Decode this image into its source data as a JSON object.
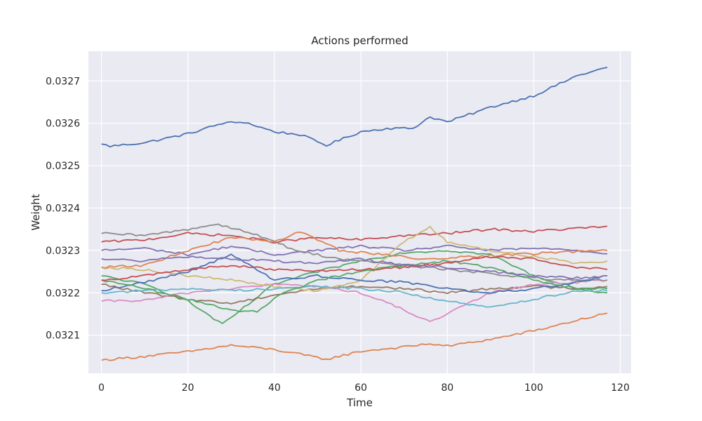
{
  "chart_data": {
    "type": "line",
    "title": "Actions performed",
    "xlabel": "Time",
    "ylabel": "Weight",
    "xlim": [
      -3,
      122.5
    ],
    "ylim": [
      0.03201,
      0.03277
    ],
    "xticks": [
      0,
      20,
      40,
      60,
      80,
      100,
      120
    ],
    "xtick_labels": [
      "0",
      "20",
      "40",
      "60",
      "80",
      "100",
      "120"
    ],
    "yticks": [
      0.0321,
      0.0322,
      0.0323,
      0.0324,
      0.0325,
      0.0326,
      0.0327
    ],
    "ytick_labels": [
      "0.0321",
      "0.0322",
      "0.0323",
      "0.0324",
      "0.0325",
      "0.0326",
      "0.0327"
    ],
    "grid": true,
    "legend": "none",
    "background": "#eaeaf2",
    "series_note": "x values are 0..117 for every series",
    "series": [
      {
        "color": "#4c72b0",
        "values": [
          {
            "x": 0,
            "y": 0.032551
          },
          {
            "x": 2,
            "y": 0.032546
          },
          {
            "x": 10,
            "y": 0.032554
          },
          {
            "x": 20,
            "y": 0.032575
          },
          {
            "x": 28,
            "y": 0.0326
          },
          {
            "x": 33,
            "y": 0.032603
          },
          {
            "x": 40,
            "y": 0.03258
          },
          {
            "x": 46,
            "y": 0.032573
          },
          {
            "x": 52,
            "y": 0.032548
          },
          {
            "x": 60,
            "y": 0.03258
          },
          {
            "x": 66,
            "y": 0.032588
          },
          {
            "x": 72,
            "y": 0.032588
          },
          {
            "x": 76,
            "y": 0.032615
          },
          {
            "x": 80,
            "y": 0.032603
          },
          {
            "x": 90,
            "y": 0.032638
          },
          {
            "x": 100,
            "y": 0.032665
          },
          {
            "x": 110,
            "y": 0.032712
          },
          {
            "x": 117,
            "y": 0.032732
          }
        ]
      },
      {
        "color": "#dd8452",
        "values": [
          {
            "x": 0,
            "y": 0.032041
          },
          {
            "x": 10,
            "y": 0.03205
          },
          {
            "x": 20,
            "y": 0.032061
          },
          {
            "x": 30,
            "y": 0.032076
          },
          {
            "x": 40,
            "y": 0.032066
          },
          {
            "x": 52,
            "y": 0.032043
          },
          {
            "x": 60,
            "y": 0.032062
          },
          {
            "x": 70,
            "y": 0.032072
          },
          {
            "x": 76,
            "y": 0.03208
          },
          {
            "x": 80,
            "y": 0.032074
          },
          {
            "x": 90,
            "y": 0.03209
          },
          {
            "x": 100,
            "y": 0.03211
          },
          {
            "x": 110,
            "y": 0.032135
          },
          {
            "x": 117,
            "y": 0.032152
          }
        ]
      },
      {
        "color": "#55a868",
        "values": [
          {
            "x": 0,
            "y": 0.03224
          },
          {
            "x": 10,
            "y": 0.03222
          },
          {
            "x": 20,
            "y": 0.03218
          },
          {
            "x": 28,
            "y": 0.032125
          },
          {
            "x": 33,
            "y": 0.032165
          },
          {
            "x": 40,
            "y": 0.03222
          },
          {
            "x": 50,
            "y": 0.03225
          },
          {
            "x": 60,
            "y": 0.032275
          },
          {
            "x": 70,
            "y": 0.032295
          },
          {
            "x": 80,
            "y": 0.0323
          },
          {
            "x": 90,
            "y": 0.03229
          },
          {
            "x": 100,
            "y": 0.03224
          },
          {
            "x": 110,
            "y": 0.03221
          },
          {
            "x": 117,
            "y": 0.0322
          }
        ]
      },
      {
        "color": "#c44e52",
        "values": [
          {
            "x": 0,
            "y": 0.03232
          },
          {
            "x": 10,
            "y": 0.032325
          },
          {
            "x": 20,
            "y": 0.03234
          },
          {
            "x": 30,
            "y": 0.032335
          },
          {
            "x": 40,
            "y": 0.03232
          },
          {
            "x": 50,
            "y": 0.03233
          },
          {
            "x": 60,
            "y": 0.032325
          },
          {
            "x": 70,
            "y": 0.032335
          },
          {
            "x": 80,
            "y": 0.03234
          },
          {
            "x": 90,
            "y": 0.03235
          },
          {
            "x": 100,
            "y": 0.032345
          },
          {
            "x": 110,
            "y": 0.032352
          },
          {
            "x": 117,
            "y": 0.032357
          }
        ]
      },
      {
        "color": "#8172b3",
        "values": [
          {
            "x": 0,
            "y": 0.0323
          },
          {
            "x": 10,
            "y": 0.032305
          },
          {
            "x": 20,
            "y": 0.03229
          },
          {
            "x": 30,
            "y": 0.03231
          },
          {
            "x": 40,
            "y": 0.03229
          },
          {
            "x": 50,
            "y": 0.0323
          },
          {
            "x": 60,
            "y": 0.03231
          },
          {
            "x": 70,
            "y": 0.0323
          },
          {
            "x": 80,
            "y": 0.03231
          },
          {
            "x": 90,
            "y": 0.0323
          },
          {
            "x": 100,
            "y": 0.032305
          },
          {
            "x": 110,
            "y": 0.0323
          },
          {
            "x": 117,
            "y": 0.032292
          }
        ]
      },
      {
        "color": "#937860",
        "values": [
          {
            "x": 0,
            "y": 0.03222
          },
          {
            "x": 10,
            "y": 0.0322
          },
          {
            "x": 20,
            "y": 0.032185
          },
          {
            "x": 30,
            "y": 0.032175
          },
          {
            "x": 40,
            "y": 0.032195
          },
          {
            "x": 50,
            "y": 0.03221
          },
          {
            "x": 60,
            "y": 0.032215
          },
          {
            "x": 70,
            "y": 0.03221
          },
          {
            "x": 80,
            "y": 0.0322
          },
          {
            "x": 90,
            "y": 0.03221
          },
          {
            "x": 100,
            "y": 0.032215
          },
          {
            "x": 110,
            "y": 0.03221
          },
          {
            "x": 117,
            "y": 0.032215
          }
        ]
      },
      {
        "color": "#da8bc3",
        "values": [
          {
            "x": 0,
            "y": 0.03218
          },
          {
            "x": 10,
            "y": 0.032182
          },
          {
            "x": 20,
            "y": 0.0322
          },
          {
            "x": 30,
            "y": 0.03221
          },
          {
            "x": 40,
            "y": 0.03222
          },
          {
            "x": 50,
            "y": 0.032215
          },
          {
            "x": 60,
            "y": 0.0322
          },
          {
            "x": 70,
            "y": 0.03216
          },
          {
            "x": 76,
            "y": 0.03213
          },
          {
            "x": 80,
            "y": 0.03215
          },
          {
            "x": 90,
            "y": 0.0322
          },
          {
            "x": 100,
            "y": 0.03222
          },
          {
            "x": 110,
            "y": 0.032225
          },
          {
            "x": 117,
            "y": 0.03223
          }
        ]
      },
      {
        "color": "#8c8c8c",
        "values": [
          {
            "x": 0,
            "y": 0.03234
          },
          {
            "x": 10,
            "y": 0.032335
          },
          {
            "x": 20,
            "y": 0.03235
          },
          {
            "x": 27,
            "y": 0.032362
          },
          {
            "x": 35,
            "y": 0.03234
          },
          {
            "x": 45,
            "y": 0.0323
          },
          {
            "x": 55,
            "y": 0.03228
          },
          {
            "x": 65,
            "y": 0.03227
          },
          {
            "x": 75,
            "y": 0.03226
          },
          {
            "x": 85,
            "y": 0.03225
          },
          {
            "x": 95,
            "y": 0.03224
          },
          {
            "x": 105,
            "y": 0.03223
          },
          {
            "x": 117,
            "y": 0.03223
          }
        ]
      },
      {
        "color": "#ccb974",
        "values": [
          {
            "x": 0,
            "y": 0.03226
          },
          {
            "x": 10,
            "y": 0.032255
          },
          {
            "x": 20,
            "y": 0.03224
          },
          {
            "x": 30,
            "y": 0.03223
          },
          {
            "x": 40,
            "y": 0.032215
          },
          {
            "x": 50,
            "y": 0.032205
          },
          {
            "x": 60,
            "y": 0.03223
          },
          {
            "x": 70,
            "y": 0.03232
          },
          {
            "x": 76,
            "y": 0.032355
          },
          {
            "x": 80,
            "y": 0.03232
          },
          {
            "x": 90,
            "y": 0.0323
          },
          {
            "x": 100,
            "y": 0.032285
          },
          {
            "x": 110,
            "y": 0.03227
          },
          {
            "x": 117,
            "y": 0.032275
          }
        ]
      },
      {
        "color": "#64b5cd",
        "values": [
          {
            "x": 0,
            "y": 0.0322
          },
          {
            "x": 10,
            "y": 0.032205
          },
          {
            "x": 20,
            "y": 0.03221
          },
          {
            "x": 30,
            "y": 0.032205
          },
          {
            "x": 40,
            "y": 0.03221
          },
          {
            "x": 50,
            "y": 0.032215
          },
          {
            "x": 60,
            "y": 0.03221
          },
          {
            "x": 70,
            "y": 0.0322
          },
          {
            "x": 80,
            "y": 0.03218
          },
          {
            "x": 90,
            "y": 0.032165
          },
          {
            "x": 100,
            "y": 0.032185
          },
          {
            "x": 110,
            "y": 0.032205
          },
          {
            "x": 117,
            "y": 0.032205
          }
        ]
      },
      {
        "color": "#4c72b0",
        "values": [
          {
            "x": 0,
            "y": 0.032205
          },
          {
            "x": 10,
            "y": 0.032225
          },
          {
            "x": 20,
            "y": 0.03225
          },
          {
            "x": 30,
            "y": 0.03229
          },
          {
            "x": 40,
            "y": 0.03223
          },
          {
            "x": 50,
            "y": 0.03224
          },
          {
            "x": 60,
            "y": 0.03223
          },
          {
            "x": 70,
            "y": 0.032225
          },
          {
            "x": 80,
            "y": 0.03221
          },
          {
            "x": 90,
            "y": 0.0322
          },
          {
            "x": 100,
            "y": 0.03221
          },
          {
            "x": 110,
            "y": 0.032225
          },
          {
            "x": 117,
            "y": 0.03224
          }
        ]
      },
      {
        "color": "#dd8452",
        "values": [
          {
            "x": 0,
            "y": 0.03226
          },
          {
            "x": 10,
            "y": 0.032265
          },
          {
            "x": 20,
            "y": 0.0323
          },
          {
            "x": 30,
            "y": 0.03233
          },
          {
            "x": 40,
            "y": 0.03232
          },
          {
            "x": 46,
            "y": 0.032345
          },
          {
            "x": 55,
            "y": 0.0323
          },
          {
            "x": 65,
            "y": 0.03229
          },
          {
            "x": 75,
            "y": 0.03228
          },
          {
            "x": 85,
            "y": 0.032285
          },
          {
            "x": 95,
            "y": 0.03229
          },
          {
            "x": 105,
            "y": 0.032295
          },
          {
            "x": 117,
            "y": 0.0323
          }
        ]
      },
      {
        "color": "#55a868",
        "values": [
          {
            "x": 0,
            "y": 0.03223
          },
          {
            "x": 10,
            "y": 0.03221
          },
          {
            "x": 20,
            "y": 0.032185
          },
          {
            "x": 30,
            "y": 0.03216
          },
          {
            "x": 36,
            "y": 0.032155
          },
          {
            "x": 42,
            "y": 0.0322
          },
          {
            "x": 50,
            "y": 0.03223
          },
          {
            "x": 60,
            "y": 0.03225
          },
          {
            "x": 70,
            "y": 0.032265
          },
          {
            "x": 80,
            "y": 0.032275
          },
          {
            "x": 90,
            "y": 0.03226
          },
          {
            "x": 100,
            "y": 0.03223
          },
          {
            "x": 110,
            "y": 0.03221
          },
          {
            "x": 117,
            "y": 0.03221
          }
        ]
      },
      {
        "color": "#c44e52",
        "values": [
          {
            "x": 0,
            "y": 0.03223
          },
          {
            "x": 10,
            "y": 0.03224
          },
          {
            "x": 20,
            "y": 0.032255
          },
          {
            "x": 30,
            "y": 0.032265
          },
          {
            "x": 40,
            "y": 0.032255
          },
          {
            "x": 50,
            "y": 0.03225
          },
          {
            "x": 60,
            "y": 0.032255
          },
          {
            "x": 70,
            "y": 0.03226
          },
          {
            "x": 80,
            "y": 0.03227
          },
          {
            "x": 90,
            "y": 0.032285
          },
          {
            "x": 100,
            "y": 0.03228
          },
          {
            "x": 110,
            "y": 0.03226
          },
          {
            "x": 117,
            "y": 0.032255
          }
        ]
      },
      {
        "color": "#8172b3",
        "values": [
          {
            "x": 0,
            "y": 0.03228
          },
          {
            "x": 10,
            "y": 0.032275
          },
          {
            "x": 20,
            "y": 0.032285
          },
          {
            "x": 30,
            "y": 0.03228
          },
          {
            "x": 40,
            "y": 0.032275
          },
          {
            "x": 50,
            "y": 0.03227
          },
          {
            "x": 60,
            "y": 0.03228
          },
          {
            "x": 70,
            "y": 0.032265
          },
          {
            "x": 80,
            "y": 0.03226
          },
          {
            "x": 90,
            "y": 0.03225
          },
          {
            "x": 100,
            "y": 0.03224
          },
          {
            "x": 110,
            "y": 0.032235
          },
          {
            "x": 117,
            "y": 0.03224
          }
        ]
      }
    ]
  }
}
